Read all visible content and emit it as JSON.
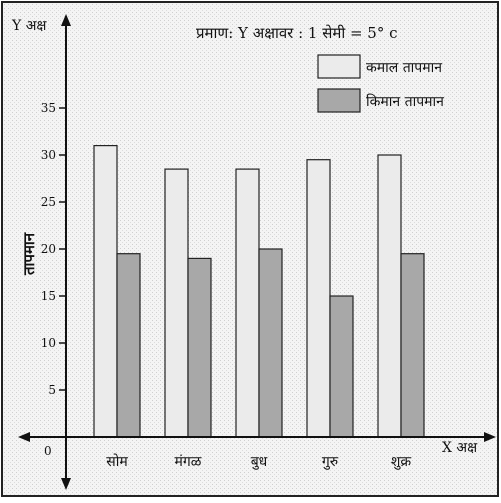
{
  "chart_data": {
    "type": "bar",
    "scale_note": "प्रमाण: Y अक्षावर : 1 सेमी = 5° c",
    "y_axis_label": "Y अक्ष",
    "x_axis_label": "X अक्ष",
    "ylabel": "तापमान",
    "origin_label": "0",
    "ylim": [
      0,
      40
    ],
    "yticks": [
      "5",
      "10",
      "15",
      "20",
      "25",
      "30",
      "35"
    ],
    "categories": [
      "सोम",
      "मंगळ",
      "बुध",
      "गुरु",
      "शुक्र"
    ],
    "series": [
      {
        "name": "कमाल तापमान",
        "values": [
          31,
          28.5,
          28.5,
          29.5,
          30
        ],
        "color": "#ebebeb"
      },
      {
        "name": "किमान तापमान",
        "values": [
          19.5,
          19,
          20,
          15,
          19.5
        ],
        "color": "#a8a8a8"
      }
    ],
    "grid": true,
    "legend_position": "top-right"
  }
}
